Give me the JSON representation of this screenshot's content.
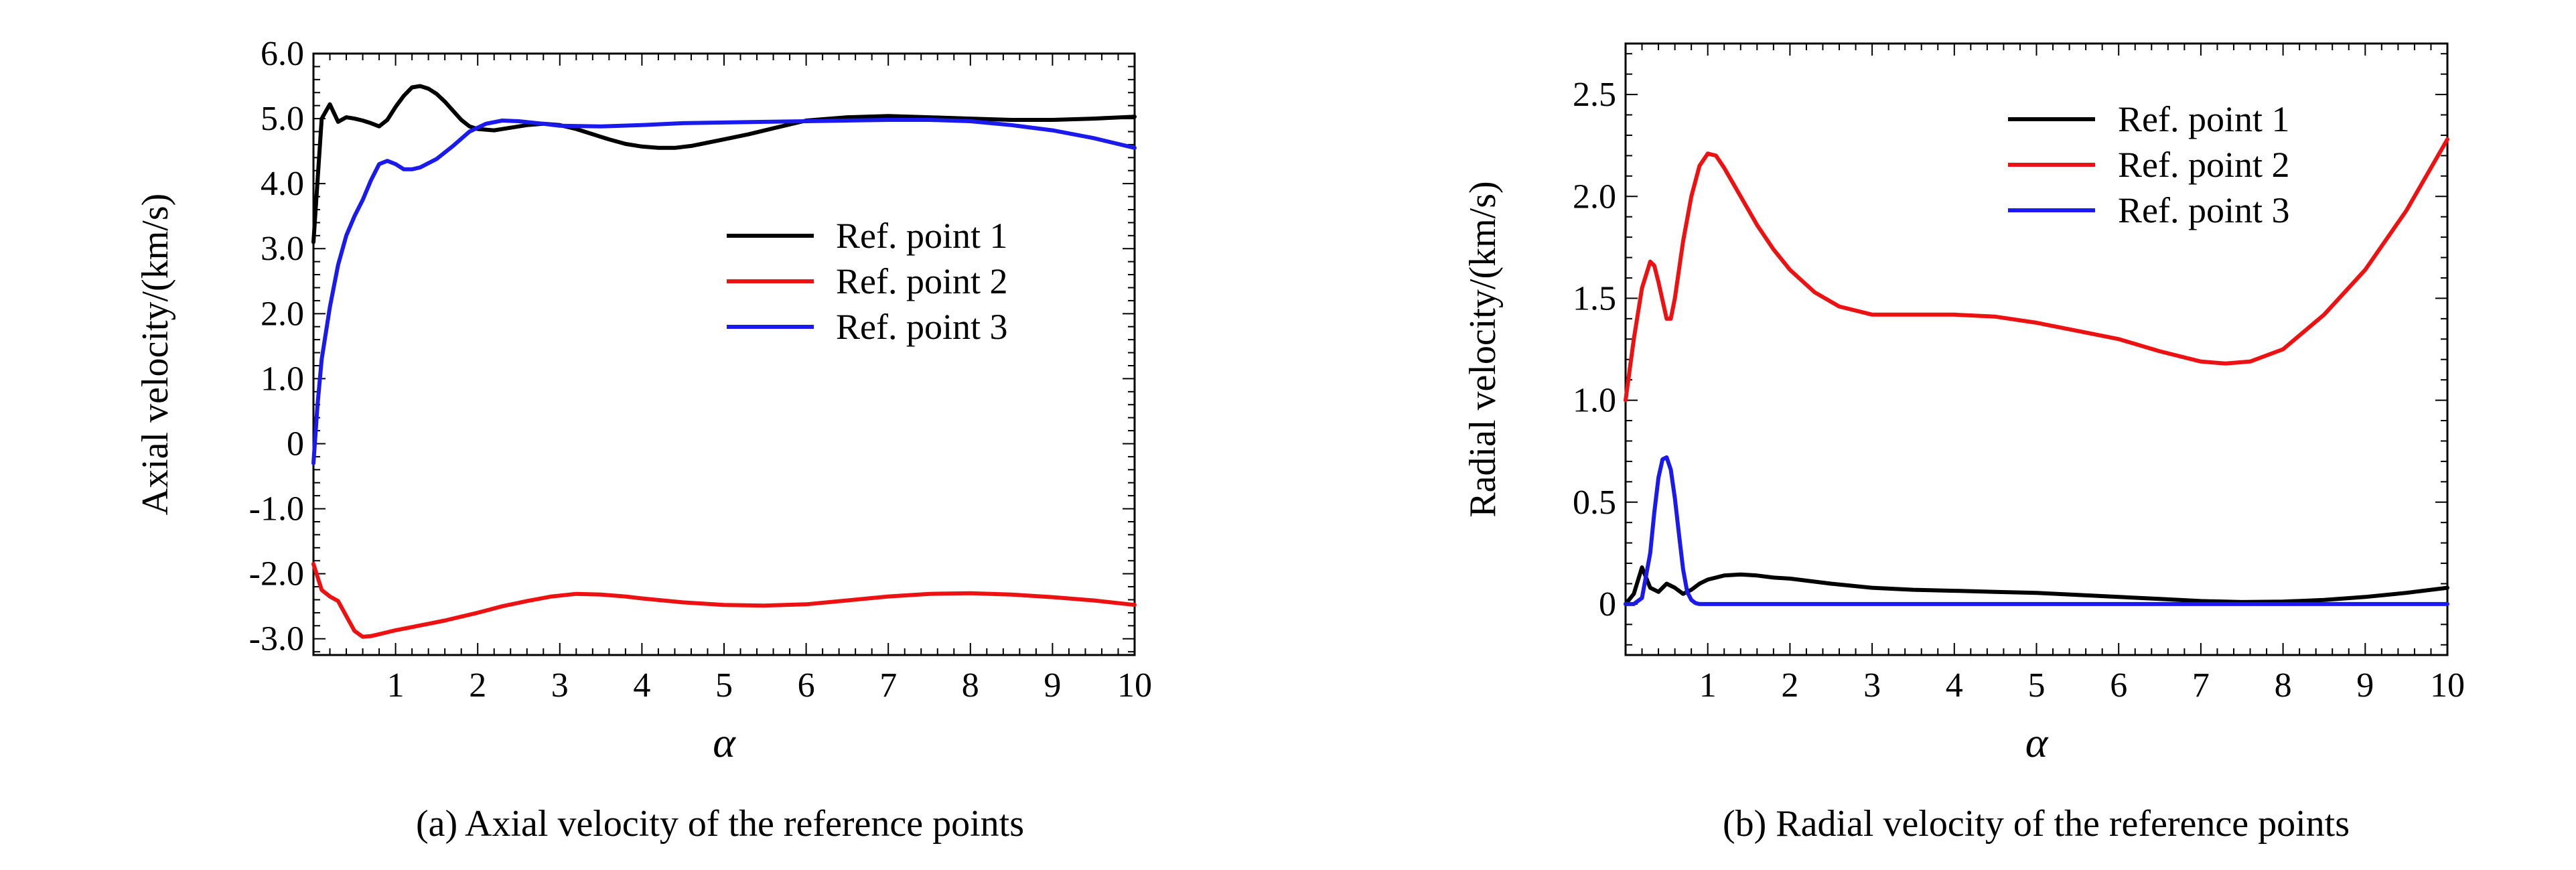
{
  "chart_data": [
    {
      "type": "line",
      "caption": "(a) Axial velocity of the reference points",
      "xlabel": "α",
      "ylabel": "Axial velocity/(km/s)",
      "xlim": [
        0,
        10
      ],
      "ylim": [
        -3.25,
        6.0
      ],
      "xticks": [
        1,
        2,
        3,
        4,
        5,
        6,
        7,
        8,
        9,
        10
      ],
      "xtick_labels": [
        "1",
        "2",
        "3",
        "4",
        "5",
        "6",
        "7",
        "8",
        "9",
        "10"
      ],
      "yticks": [
        -3,
        -2,
        -1,
        0,
        1,
        2,
        3,
        4,
        5,
        6
      ],
      "ytick_labels": [
        "-3.0",
        "-2.0",
        "-1.0",
        "0",
        "1.0",
        "2.0",
        "3.0",
        "4.0",
        "5.0",
        "6.0"
      ],
      "legend_position": "center-right",
      "series": [
        {
          "name": "Ref. point 1",
          "color": "#000000",
          "x": [
            0.0,
            0.1,
            0.2,
            0.3,
            0.4,
            0.5,
            0.6,
            0.7,
            0.8,
            0.9,
            1.0,
            1.1,
            1.2,
            1.3,
            1.4,
            1.5,
            1.6,
            1.7,
            1.8,
            1.9,
            2.0,
            2.2,
            2.4,
            2.6,
            2.8,
            3.0,
            3.2,
            3.4,
            3.6,
            3.8,
            4.0,
            4.2,
            4.4,
            4.6,
            4.8,
            5.0,
            5.3,
            5.6,
            6.0,
            6.5,
            7.0,
            7.5,
            8.0,
            8.5,
            9.0,
            9.5,
            10.0
          ],
          "y": [
            3.1,
            5.0,
            5.22,
            4.95,
            5.02,
            5.0,
            4.97,
            4.93,
            4.88,
            4.98,
            5.18,
            5.35,
            5.48,
            5.5,
            5.46,
            5.38,
            5.26,
            5.12,
            4.98,
            4.88,
            4.84,
            4.82,
            4.86,
            4.9,
            4.92,
            4.9,
            4.84,
            4.76,
            4.68,
            4.61,
            4.57,
            4.55,
            4.55,
            4.58,
            4.63,
            4.68,
            4.76,
            4.85,
            4.97,
            5.02,
            5.04,
            5.02,
            5.0,
            4.98,
            4.98,
            5.0,
            5.03
          ]
        },
        {
          "name": "Ref. point 2",
          "color": "#ee1111",
          "x": [
            0.0,
            0.1,
            0.2,
            0.3,
            0.4,
            0.5,
            0.6,
            0.7,
            0.8,
            0.9,
            1.0,
            1.2,
            1.4,
            1.6,
            1.8,
            2.0,
            2.3,
            2.6,
            2.9,
            3.2,
            3.5,
            3.8,
            4.0,
            4.5,
            5.0,
            5.5,
            6.0,
            6.5,
            7.0,
            7.5,
            8.0,
            8.5,
            9.0,
            9.5,
            10.0
          ],
          "y": [
            -1.85,
            -2.25,
            -2.35,
            -2.42,
            -2.65,
            -2.88,
            -2.97,
            -2.96,
            -2.93,
            -2.9,
            -2.87,
            -2.82,
            -2.77,
            -2.72,
            -2.66,
            -2.6,
            -2.5,
            -2.42,
            -2.35,
            -2.31,
            -2.32,
            -2.35,
            -2.38,
            -2.44,
            -2.48,
            -2.49,
            -2.47,
            -2.41,
            -2.35,
            -2.31,
            -2.3,
            -2.32,
            -2.36,
            -2.41,
            -2.48
          ]
        },
        {
          "name": "Ref. point 3",
          "color": "#1a1aee",
          "x": [
            0.0,
            0.05,
            0.1,
            0.2,
            0.3,
            0.4,
            0.5,
            0.6,
            0.7,
            0.8,
            0.9,
            1.0,
            1.1,
            1.2,
            1.3,
            1.5,
            1.7,
            1.9,
            2.1,
            2.3,
            2.5,
            2.8,
            3.0,
            3.5,
            4.0,
            4.5,
            5.0,
            5.5,
            6.0,
            6.5,
            7.0,
            7.5,
            8.0,
            8.5,
            9.0,
            9.5,
            10.0
          ],
          "y": [
            -0.3,
            0.6,
            1.3,
            2.1,
            2.75,
            3.2,
            3.5,
            3.75,
            4.05,
            4.3,
            4.35,
            4.3,
            4.22,
            4.22,
            4.25,
            4.38,
            4.58,
            4.8,
            4.92,
            4.97,
            4.96,
            4.92,
            4.89,
            4.88,
            4.9,
            4.93,
            4.94,
            4.95,
            4.96,
            4.97,
            4.98,
            4.98,
            4.96,
            4.9,
            4.82,
            4.7,
            4.55
          ]
        }
      ]
    },
    {
      "type": "line",
      "caption": "(b) Radial velocity of the reference points",
      "xlabel": "α",
      "ylabel": "Radial velocity/(km/s)",
      "xlim": [
        0,
        10
      ],
      "ylim": [
        -0.25,
        2.75
      ],
      "xticks": [
        1,
        2,
        3,
        4,
        5,
        6,
        7,
        8,
        9,
        10
      ],
      "xtick_labels": [
        "1",
        "2",
        "3",
        "4",
        "5",
        "6",
        "7",
        "8",
        "9",
        "10"
      ],
      "yticks": [
        0,
        0.5,
        1.0,
        1.5,
        2.0,
        2.5
      ],
      "ytick_labels": [
        "0",
        "0.5",
        "1.0",
        "1.5",
        "2.0",
        "2.5"
      ],
      "legend_position": "top-right",
      "series": [
        {
          "name": "Ref. point 1",
          "color": "#000000",
          "x": [
            0.0,
            0.1,
            0.2,
            0.3,
            0.4,
            0.5,
            0.6,
            0.7,
            0.8,
            0.9,
            1.0,
            1.2,
            1.4,
            1.6,
            1.8,
            2.0,
            2.5,
            3.0,
            3.5,
            4.0,
            4.5,
            5.0,
            5.5,
            6.0,
            6.5,
            7.0,
            7.5,
            8.0,
            8.5,
            9.0,
            9.5,
            10.0
          ],
          "y": [
            0.0,
            0.05,
            0.18,
            0.08,
            0.06,
            0.1,
            0.08,
            0.05,
            0.07,
            0.1,
            0.12,
            0.14,
            0.145,
            0.14,
            0.13,
            0.125,
            0.1,
            0.08,
            0.07,
            0.065,
            0.06,
            0.055,
            0.045,
            0.035,
            0.025,
            0.015,
            0.01,
            0.012,
            0.02,
            0.035,
            0.055,
            0.08
          ]
        },
        {
          "name": "Ref. point 2",
          "color": "#ee1111",
          "x": [
            0.0,
            0.1,
            0.2,
            0.3,
            0.35,
            0.4,
            0.5,
            0.55,
            0.6,
            0.7,
            0.8,
            0.9,
            1.0,
            1.1,
            1.2,
            1.4,
            1.6,
            1.8,
            2.0,
            2.3,
            2.6,
            3.0,
            3.5,
            4.0,
            4.5,
            5.0,
            5.5,
            6.0,
            6.5,
            7.0,
            7.3,
            7.6,
            8.0,
            8.5,
            9.0,
            9.5,
            10.0
          ],
          "y": [
            1.0,
            1.3,
            1.55,
            1.68,
            1.66,
            1.58,
            1.4,
            1.4,
            1.5,
            1.78,
            2.0,
            2.15,
            2.21,
            2.2,
            2.14,
            2.0,
            1.86,
            1.74,
            1.64,
            1.53,
            1.46,
            1.42,
            1.42,
            1.42,
            1.41,
            1.38,
            1.34,
            1.3,
            1.24,
            1.19,
            1.18,
            1.19,
            1.25,
            1.42,
            1.64,
            1.93,
            2.28
          ]
        },
        {
          "name": "Ref. point 3",
          "color": "#1a1aee",
          "x": [
            0.0,
            0.1,
            0.2,
            0.3,
            0.35,
            0.4,
            0.45,
            0.5,
            0.55,
            0.6,
            0.65,
            0.7,
            0.75,
            0.8,
            0.85,
            0.9,
            1.0,
            2.0,
            4.0,
            6.0,
            8.0,
            10.0
          ],
          "y": [
            0.0,
            0.0,
            0.03,
            0.25,
            0.45,
            0.62,
            0.71,
            0.72,
            0.66,
            0.52,
            0.34,
            0.17,
            0.06,
            0.02,
            0.005,
            0.0,
            0.0,
            0.0,
            0.0,
            0.0,
            0.0,
            0.0
          ]
        }
      ]
    }
  ]
}
